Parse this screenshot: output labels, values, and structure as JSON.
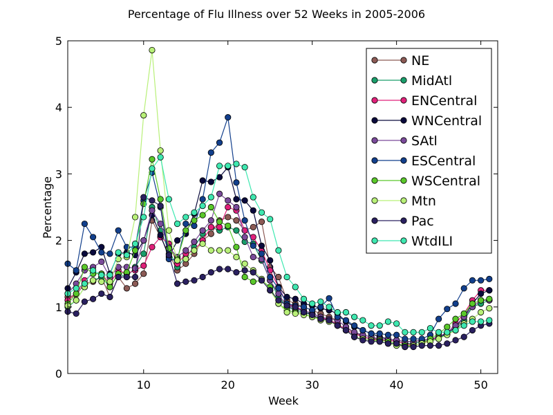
{
  "chart_data": {
    "type": "line",
    "title": "Percentage of Flu Illness over 52 Weeks in 2005-2006",
    "xlabel": "Week",
    "ylabel": "Percentage",
    "xlim": [
      1,
      52
    ],
    "ylim": [
      0,
      5
    ],
    "x_ticks": [
      10,
      20,
      30,
      40,
      50
    ],
    "x_tick_labels": [
      "10",
      "20",
      "30",
      "40",
      "50"
    ],
    "y_ticks": [
      0,
      1,
      2,
      3,
      4,
      5
    ],
    "y_tick_labels": [
      "0",
      "1",
      "2",
      "3",
      "4",
      "5"
    ],
    "grid": false,
    "legend_position": "top-right",
    "x": [
      1,
      2,
      3,
      4,
      5,
      6,
      7,
      8,
      9,
      10,
      11,
      12,
      13,
      14,
      15,
      16,
      17,
      18,
      19,
      20,
      21,
      22,
      23,
      24,
      25,
      26,
      27,
      28,
      29,
      30,
      31,
      32,
      33,
      34,
      35,
      36,
      37,
      38,
      39,
      40,
      41,
      42,
      43,
      44,
      45,
      46,
      47,
      48,
      49,
      50,
      51
    ],
    "series": [
      {
        "name": "NE",
        "color": "#8c5a55",
        "values": [
          1.15,
          1.18,
          1.35,
          1.38,
          1.45,
          1.15,
          1.45,
          1.28,
          1.35,
          1.5,
          2.3,
          2.05,
          1.8,
          1.55,
          1.65,
          1.8,
          2.0,
          2.1,
          2.3,
          2.35,
          2.3,
          2.15,
          2.2,
          2.28,
          1.6,
          1.45,
          1.1,
          1.05,
          1.0,
          0.95,
          0.9,
          0.85,
          0.8,
          0.7,
          0.6,
          0.58,
          0.55,
          0.5,
          0.5,
          0.48,
          0.45,
          0.45,
          0.48,
          0.5,
          0.55,
          0.6,
          0.7,
          0.8,
          1.0,
          1.1,
          1.1
        ]
      },
      {
        "name": "MidAtl",
        "color": "#1a9e6b",
        "values": [
          1.0,
          1.1,
          1.3,
          1.4,
          1.45,
          1.3,
          1.5,
          1.45,
          1.6,
          1.8,
          2.5,
          2.15,
          1.85,
          1.6,
          1.75,
          1.9,
          2.1,
          2.2,
          2.15,
          2.2,
          2.15,
          1.98,
          1.95,
          1.7,
          1.4,
          1.15,
          1.0,
          0.95,
          0.92,
          0.9,
          0.85,
          0.8,
          0.75,
          0.65,
          0.6,
          0.55,
          0.52,
          0.5,
          0.5,
          0.48,
          0.45,
          0.45,
          0.48,
          0.5,
          0.52,
          0.6,
          0.65,
          0.8,
          1.0,
          1.05,
          1.1
        ]
      },
      {
        "name": "ENCentral",
        "color": "#e0207a",
        "values": [
          1.1,
          1.2,
          1.4,
          1.5,
          1.5,
          1.35,
          1.55,
          1.5,
          1.55,
          1.62,
          1.9,
          2.05,
          1.95,
          1.65,
          1.8,
          1.85,
          2.0,
          2.2,
          2.2,
          2.5,
          2.45,
          2.15,
          2.05,
          1.85,
          1.55,
          1.3,
          1.05,
          1.0,
          0.95,
          0.9,
          0.85,
          0.8,
          0.75,
          0.65,
          0.6,
          0.55,
          0.52,
          0.5,
          0.5,
          0.48,
          0.45,
          0.42,
          0.45,
          0.5,
          0.55,
          0.6,
          0.75,
          0.9,
          1.1,
          1.25,
          1.25
        ]
      },
      {
        "name": "WNCentral",
        "color": "#0a0a3c",
        "values": [
          1.28,
          1.52,
          1.8,
          1.82,
          1.9,
          1.5,
          1.8,
          1.82,
          1.78,
          2.0,
          2.38,
          2.08,
          1.75,
          2.0,
          2.1,
          2.4,
          2.9,
          2.88,
          2.95,
          3.1,
          2.62,
          2.6,
          2.45,
          1.92,
          1.7,
          1.3,
          1.15,
          1.12,
          1.05,
          1.02,
          0.98,
          0.95,
          0.9,
          0.78,
          0.7,
          0.65,
          0.6,
          0.55,
          0.52,
          0.5,
          0.48,
          0.48,
          0.5,
          0.52,
          0.55,
          0.6,
          0.7,
          0.85,
          1.05,
          1.2,
          1.25
        ]
      },
      {
        "name": "SAtl",
        "color": "#7a4a9a",
        "values": [
          1.2,
          1.35,
          1.55,
          1.6,
          1.68,
          1.45,
          1.6,
          1.6,
          1.58,
          2.0,
          2.45,
          2.25,
          1.9,
          1.75,
          1.85,
          1.98,
          2.15,
          2.3,
          2.7,
          2.6,
          2.5,
          2.05,
          1.75,
          1.72,
          1.4,
          1.2,
          1.0,
          0.98,
          0.95,
          0.9,
          0.85,
          0.82,
          0.8,
          0.7,
          0.62,
          0.58,
          0.55,
          0.52,
          0.52,
          0.5,
          0.48,
          0.48,
          0.5,
          0.52,
          0.55,
          0.62,
          0.72,
          0.85,
          1.0,
          1.1,
          1.1
        ]
      },
      {
        "name": "ESCentral",
        "color": "#123f8c",
        "values": [
          1.65,
          1.55,
          2.25,
          2.05,
          1.82,
          1.8,
          2.15,
          1.9,
          1.9,
          2.6,
          3.02,
          2.5,
          1.72,
          1.7,
          2.25,
          2.22,
          2.62,
          3.32,
          3.47,
          3.85,
          2.87,
          2.3,
          1.92,
          1.8,
          1.45,
          1.28,
          1.05,
          1.02,
          1.0,
          0.95,
          1.0,
          1.13,
          0.85,
          0.8,
          0.72,
          0.65,
          0.6,
          0.6,
          0.58,
          0.58,
          0.52,
          0.52,
          0.52,
          0.58,
          0.82,
          0.97,
          1.05,
          1.28,
          1.4,
          1.4,
          1.42
        ]
      },
      {
        "name": "WSCentral",
        "color": "#5ac82a",
        "values": [
          1.05,
          1.2,
          1.6,
          1.5,
          1.5,
          1.3,
          1.5,
          1.52,
          1.85,
          2.55,
          3.22,
          2.62,
          1.88,
          1.72,
          2.15,
          2.3,
          2.38,
          2.5,
          2.28,
          2.22,
          1.9,
          1.45,
          1.38,
          1.4,
          1.3,
          1.05,
          0.95,
          0.92,
          0.9,
          0.85,
          0.82,
          0.8,
          0.72,
          0.65,
          0.55,
          0.52,
          0.5,
          0.5,
          0.48,
          0.45,
          0.42,
          0.42,
          0.45,
          0.52,
          0.6,
          0.7,
          0.82,
          0.9,
          1.05,
          1.1,
          1.12
        ]
      },
      {
        "name": "Mtn",
        "color": "#b8f078",
        "values": [
          1.02,
          1.1,
          1.3,
          1.4,
          1.38,
          1.38,
          1.72,
          1.75,
          2.35,
          3.88,
          4.86,
          3.35,
          2.15,
          1.7,
          1.72,
          1.85,
          1.95,
          1.85,
          1.85,
          1.85,
          1.75,
          1.65,
          1.55,
          1.42,
          1.25,
          1.05,
          0.92,
          0.9,
          0.88,
          0.85,
          0.8,
          0.78,
          0.72,
          0.65,
          0.55,
          0.52,
          0.5,
          0.48,
          0.45,
          0.42,
          0.4,
          0.42,
          0.45,
          0.48,
          0.52,
          0.58,
          0.65,
          0.75,
          0.82,
          0.92,
          0.98
        ]
      },
      {
        "name": "Pac",
        "color": "#2a2060",
        "values": [
          0.93,
          0.9,
          1.08,
          1.12,
          1.2,
          1.15,
          1.45,
          1.45,
          1.45,
          2.65,
          2.6,
          2.52,
          1.78,
          1.35,
          1.38,
          1.4,
          1.45,
          1.52,
          1.57,
          1.57,
          1.52,
          1.55,
          1.52,
          1.4,
          1.25,
          1.1,
          1.02,
          1.0,
          0.92,
          0.88,
          0.82,
          0.8,
          0.72,
          0.65,
          0.55,
          0.5,
          0.48,
          0.48,
          0.45,
          0.45,
          0.4,
          0.4,
          0.42,
          0.42,
          0.42,
          0.45,
          0.5,
          0.55,
          0.65,
          0.72,
          0.75
        ]
      },
      {
        "name": "WtdILI",
        "color": "#3ee8b0",
        "values": [
          1.2,
          1.28,
          1.35,
          1.55,
          1.48,
          1.48,
          1.82,
          1.78,
          1.95,
          2.35,
          3.08,
          3.25,
          2.62,
          2.25,
          2.35,
          2.42,
          2.52,
          2.65,
          3.12,
          3.12,
          3.15,
          3.1,
          2.65,
          2.42,
          2.32,
          1.85,
          1.45,
          1.3,
          1.12,
          1.05,
          1.08,
          1.0,
          0.92,
          0.92,
          0.85,
          0.8,
          0.72,
          0.72,
          0.78,
          0.75,
          0.62,
          0.62,
          0.62,
          0.68,
          0.62,
          0.62,
          0.65,
          0.72,
          0.78,
          0.78,
          0.8
        ]
      }
    ]
  }
}
